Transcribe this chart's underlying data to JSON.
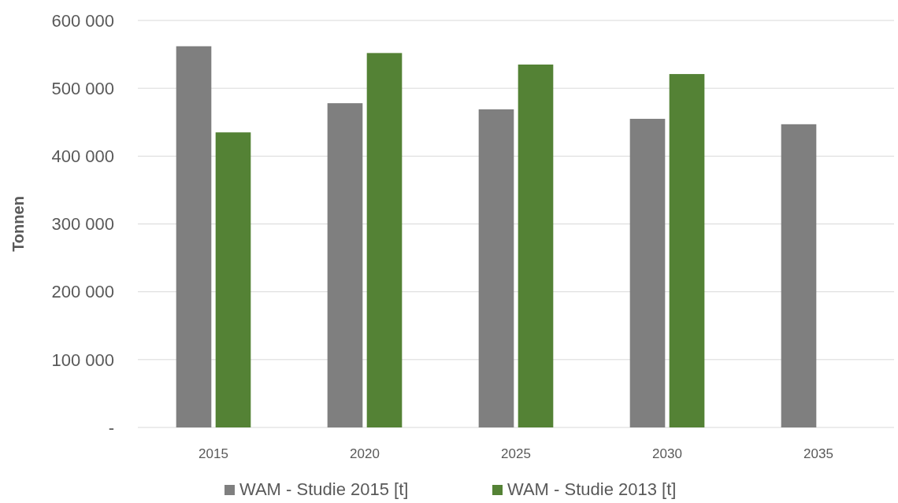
{
  "chart_data": {
    "type": "bar",
    "ylabel": "Tonnen",
    "categories": [
      "2015",
      "2020",
      "2025",
      "2030",
      "2035"
    ],
    "series": [
      {
        "name": "WAM - Studie 2015 [t]",
        "color": "#7f7f7f",
        "values": [
          562000,
          478000,
          469000,
          455000,
          447000
        ]
      },
      {
        "name": "WAM - Studie 2013 [t]",
        "color": "#548235",
        "values": [
          435000,
          552000,
          535000,
          521000,
          null
        ]
      }
    ],
    "ylim": [
      0,
      600000
    ],
    "yticks": [
      {
        "value": 0,
        "label": "-"
      },
      {
        "value": 100000,
        "label": "100 000"
      },
      {
        "value": 200000,
        "label": "200 000"
      },
      {
        "value": 300000,
        "label": "300 000"
      },
      {
        "value": 400000,
        "label": "400 000"
      },
      {
        "value": 500000,
        "label": "500 000"
      },
      {
        "value": 600000,
        "label": "600 000"
      }
    ],
    "grid": "y",
    "legend": "bottom"
  }
}
